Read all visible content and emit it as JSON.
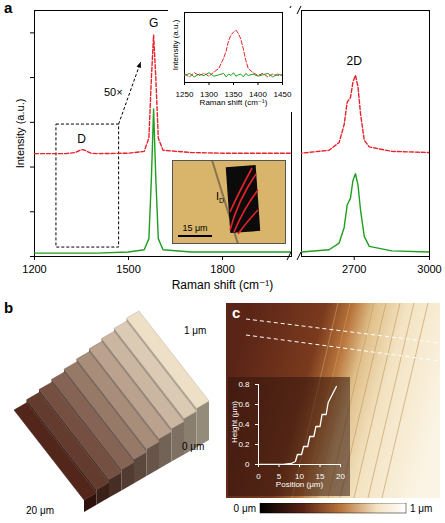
{
  "panel_labels": [
    "a",
    "b",
    "c"
  ],
  "chart_data": [
    {
      "type": "line",
      "x_label": "Raman shift (cm⁻¹)",
      "y_label": "Intensity (a.u.)",
      "xlim": [
        [
          1200,
          2020
        ],
        [
          2490,
          3000
        ]
      ],
      "xticks": [
        1200,
        1500,
        1800,
        2700,
        3000
      ],
      "ylim": [
        0,
        11
      ],
      "yticks": [
        0,
        2,
        4,
        6,
        8,
        10
      ],
      "tick_labels": "x",
      "series": [
        {
          "color": "#e8222a",
          "line_style": "dashed",
          "x": [
            1200,
            1300,
            1330,
            1345,
            1355,
            1365,
            1380,
            1400,
            1500,
            1550,
            1565,
            1573,
            1580,
            1587,
            1595,
            1610,
            1700,
            1800,
            1900,
            2020,
            2490,
            2600,
            2640,
            2660,
            2672,
            2685,
            2695,
            2705,
            2715,
            2725,
            2740,
            2760,
            2850,
            3000
          ],
          "values": [
            4.6,
            4.6,
            4.65,
            4.75,
            4.78,
            4.72,
            4.62,
            4.6,
            4.62,
            4.7,
            5.3,
            8.0,
            9.9,
            8.0,
            5.3,
            4.75,
            4.65,
            4.62,
            4.62,
            4.62,
            4.62,
            4.75,
            5.1,
            5.9,
            6.9,
            7.1,
            7.8,
            8.1,
            7.6,
            6.4,
            5.2,
            4.9,
            4.7,
            4.65
          ]
        },
        {
          "color": "#1f9e1f",
          "line_style": "solid",
          "x": [
            1200,
            1300,
            1340,
            1360,
            1400,
            1500,
            1550,
            1565,
            1573,
            1580,
            1587,
            1595,
            1610,
            1700,
            1800,
            1900,
            2020,
            2490,
            2600,
            2640,
            2660,
            2672,
            2685,
            2695,
            2705,
            2715,
            2725,
            2740,
            2760,
            2850,
            3000
          ],
          "values": [
            0.15,
            0.15,
            0.15,
            0.15,
            0.15,
            0.2,
            0.3,
            0.8,
            3.5,
            6.6,
            3.5,
            0.8,
            0.3,
            0.2,
            0.2,
            0.2,
            0.2,
            0.2,
            0.3,
            0.6,
            1.3,
            2.3,
            2.6,
            3.4,
            3.7,
            3.2,
            2.1,
            0.9,
            0.45,
            0.25,
            0.2
          ]
        }
      ],
      "annotations": [
        {
          "text": "G",
          "x": 1580,
          "y": 10.45
        },
        {
          "text": "D",
          "x": 1350,
          "y": 5.25
        },
        {
          "text": "2D",
          "x": 2700,
          "y": 8.75
        },
        {
          "text": "50×"
        }
      ],
      "zoom_box": {
        "x": [
          1270,
          1470
        ],
        "y": [
          0.4,
          5.9
        ]
      }
    },
    {
      "type": "line",
      "x_label": "Raman shift (cm⁻¹)",
      "y_label": "Intensity (a.u.)",
      "xlim": [
        1250,
        1450
      ],
      "xticks": [
        1250,
        1300,
        1350,
        1400,
        1450
      ],
      "ylim": [
        0,
        1
      ],
      "tick_labels": "x",
      "series": [
        {
          "color": "#e8222a",
          "line_style": "dashed",
          "x": [
            1250,
            1260,
            1270,
            1280,
            1290,
            1300,
            1310,
            1320,
            1330,
            1335,
            1340,
            1345,
            1350,
            1355,
            1360,
            1365,
            1370,
            1375,
            1380,
            1390,
            1400,
            1410,
            1420,
            1430,
            1440,
            1450
          ],
          "values": [
            0.12,
            0.08,
            0.14,
            0.1,
            0.13,
            0.09,
            0.15,
            0.2,
            0.35,
            0.45,
            0.6,
            0.68,
            0.72,
            0.75,
            0.7,
            0.62,
            0.48,
            0.32,
            0.2,
            0.14,
            0.1,
            0.13,
            0.08,
            0.12,
            0.1,
            0.11
          ]
        },
        {
          "color": "#1f9e1f",
          "line_style": "solid",
          "x": [
            1250,
            1260,
            1270,
            1280,
            1290,
            1300,
            1310,
            1320,
            1330,
            1335,
            1340,
            1345,
            1350,
            1355,
            1360,
            1365,
            1370,
            1375,
            1380,
            1390,
            1400,
            1410,
            1420,
            1430,
            1440,
            1450
          ],
          "values": [
            0.1,
            0.13,
            0.08,
            0.12,
            0.1,
            0.14,
            0.09,
            0.11,
            0.13,
            0.08,
            0.12,
            0.1,
            0.14,
            0.09,
            0.11,
            0.12,
            0.08,
            0.13,
            0.1,
            0.12,
            0.09,
            0.11,
            0.13,
            0.08,
            0.12,
            0.1
          ]
        }
      ]
    },
    {
      "type": "line",
      "x_label": "Position (μm)",
      "y_label": "Height (μm)",
      "xlim": [
        0,
        20
      ],
      "xticks": [
        0,
        5,
        10,
        15,
        20
      ],
      "ylim": [
        0,
        0.8
      ],
      "yticks": [
        0,
        0.2,
        0.4,
        0.6,
        0.8
      ],
      "series": [
        {
          "color": "#ffffff",
          "line_style": "solid",
          "x": [
            0,
            2,
            4,
            6,
            8,
            9,
            9.5,
            10.5,
            11,
            12,
            12.5,
            13.5,
            14,
            15,
            15.5,
            16.5,
            17,
            18,
            19
          ],
          "values": [
            0,
            0,
            0,
            0,
            0.01,
            0.03,
            0.1,
            0.1,
            0.18,
            0.18,
            0.28,
            0.28,
            0.38,
            0.38,
            0.5,
            0.5,
            0.62,
            0.7,
            0.78
          ]
        }
      ]
    }
  ],
  "optical_image": {
    "scale_bar": "15 μm",
    "map_label": {
      "text": "I",
      "subscript": "D"
    }
  },
  "afm_3d": {
    "height_top": "1 μm",
    "height_bottom": "0 μm",
    "length": "20 μm"
  },
  "afm_map": {
    "colorbar": {
      "range": [
        0,
        1
      ],
      "ticks": [
        {
          "value": 0,
          "label": "0 μm"
        },
        {
          "value": 1,
          "label": "1 μm"
        }
      ]
    }
  }
}
